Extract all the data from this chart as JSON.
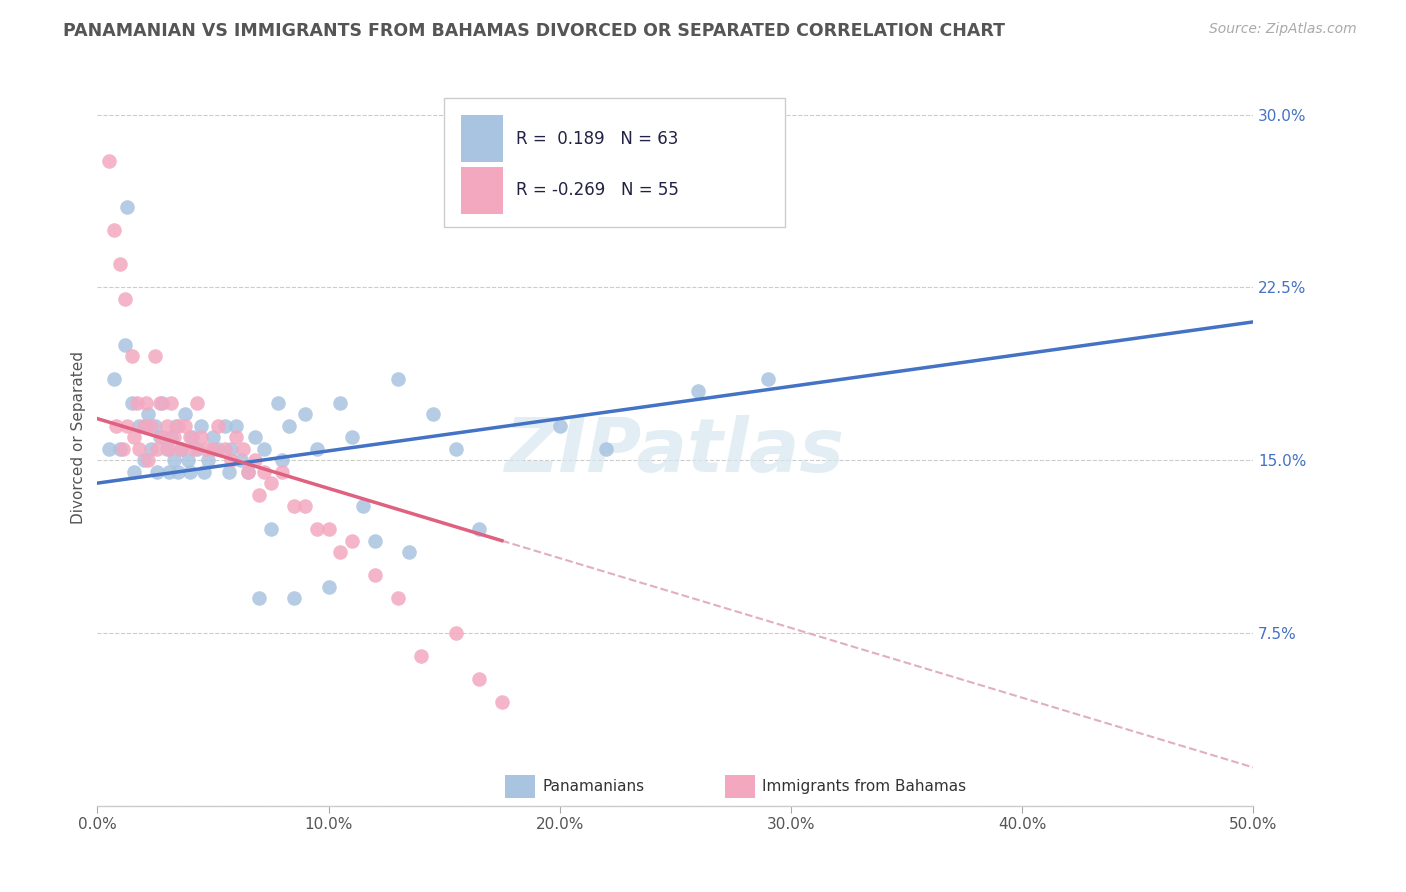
{
  "title": "PANAMANIAN VS IMMIGRANTS FROM BAHAMAS DIVORCED OR SEPARATED CORRELATION CHART",
  "source": "Source: ZipAtlas.com",
  "ylabel": "Divorced or Separated",
  "watermark": "ZIPatlas",
  "xlim": [
    0.0,
    0.5
  ],
  "ylim": [
    0.0,
    0.32
  ],
  "xticks": [
    0.0,
    0.1,
    0.2,
    0.3,
    0.4,
    0.5
  ],
  "xticklabels": [
    "0.0%",
    "10.0%",
    "20.0%",
    "30.0%",
    "40.0%",
    "50.0%"
  ],
  "yticks": [
    0.0,
    0.075,
    0.15,
    0.225,
    0.3
  ],
  "yticklabels": [
    "",
    "7.5%",
    "15.0%",
    "22.5%",
    "30.0%"
  ],
  "legend_labels": [
    "Panamanians",
    "Immigrants from Bahamas"
  ],
  "blue_color": "#a8c4e0",
  "pink_color": "#f4a8c0",
  "blue_line_color": "#4472c4",
  "pink_line_color": "#e06080",
  "dashed_line_color": "#e0b0c0",
  "R_blue": 0.189,
  "N_blue": 63,
  "R_pink": -0.269,
  "N_pink": 55,
  "blue_scatter_x": [
    0.005,
    0.007,
    0.01,
    0.012,
    0.013,
    0.015,
    0.016,
    0.018,
    0.02,
    0.021,
    0.022,
    0.023,
    0.025,
    0.026,
    0.027,
    0.028,
    0.03,
    0.031,
    0.032,
    0.033,
    0.034,
    0.035,
    0.036,
    0.038,
    0.039,
    0.04,
    0.041,
    0.043,
    0.045,
    0.046,
    0.048,
    0.05,
    0.052,
    0.055,
    0.057,
    0.058,
    0.06,
    0.062,
    0.065,
    0.068,
    0.07,
    0.072,
    0.075,
    0.078,
    0.08,
    0.083,
    0.085,
    0.09,
    0.095,
    0.1,
    0.105,
    0.11,
    0.115,
    0.12,
    0.13,
    0.135,
    0.145,
    0.155,
    0.165,
    0.2,
    0.22,
    0.26,
    0.29
  ],
  "blue_scatter_y": [
    0.155,
    0.185,
    0.155,
    0.2,
    0.26,
    0.175,
    0.145,
    0.165,
    0.15,
    0.165,
    0.17,
    0.155,
    0.165,
    0.145,
    0.16,
    0.175,
    0.155,
    0.145,
    0.16,
    0.15,
    0.165,
    0.145,
    0.155,
    0.17,
    0.15,
    0.145,
    0.16,
    0.155,
    0.165,
    0.145,
    0.15,
    0.16,
    0.155,
    0.165,
    0.145,
    0.155,
    0.165,
    0.15,
    0.145,
    0.16,
    0.09,
    0.155,
    0.12,
    0.175,
    0.15,
    0.165,
    0.09,
    0.17,
    0.155,
    0.095,
    0.175,
    0.16,
    0.13,
    0.115,
    0.185,
    0.11,
    0.17,
    0.155,
    0.12,
    0.165,
    0.155,
    0.18,
    0.185
  ],
  "pink_scatter_x": [
    0.005,
    0.007,
    0.008,
    0.01,
    0.011,
    0.012,
    0.013,
    0.015,
    0.016,
    0.017,
    0.018,
    0.02,
    0.021,
    0.022,
    0.023,
    0.025,
    0.026,
    0.027,
    0.028,
    0.03,
    0.031,
    0.032,
    0.033,
    0.035,
    0.036,
    0.038,
    0.04,
    0.042,
    0.043,
    0.045,
    0.047,
    0.05,
    0.052,
    0.055,
    0.058,
    0.06,
    0.063,
    0.065,
    0.068,
    0.07,
    0.072,
    0.075,
    0.08,
    0.085,
    0.09,
    0.095,
    0.1,
    0.105,
    0.11,
    0.12,
    0.13,
    0.14,
    0.155,
    0.165,
    0.175
  ],
  "pink_scatter_y": [
    0.28,
    0.25,
    0.165,
    0.235,
    0.155,
    0.22,
    0.165,
    0.195,
    0.16,
    0.175,
    0.155,
    0.165,
    0.175,
    0.15,
    0.165,
    0.195,
    0.155,
    0.175,
    0.16,
    0.165,
    0.155,
    0.175,
    0.16,
    0.165,
    0.155,
    0.165,
    0.16,
    0.155,
    0.175,
    0.16,
    0.155,
    0.155,
    0.165,
    0.155,
    0.15,
    0.16,
    0.155,
    0.145,
    0.15,
    0.135,
    0.145,
    0.14,
    0.145,
    0.13,
    0.13,
    0.12,
    0.12,
    0.11,
    0.115,
    0.1,
    0.09,
    0.065,
    0.075,
    0.055,
    0.045
  ],
  "blue_line_start_x": 0.0,
  "blue_line_start_y": 0.14,
  "blue_line_end_x": 0.5,
  "blue_line_end_y": 0.21,
  "pink_line_start_x": 0.0,
  "pink_line_start_y": 0.168,
  "pink_line_end_x": 0.175,
  "pink_line_end_y": 0.115
}
